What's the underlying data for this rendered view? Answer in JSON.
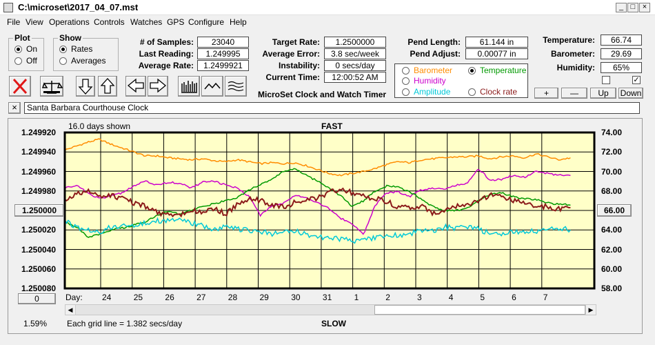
{
  "window": {
    "title": "C:\\microset\\2017_04_07.mst",
    "min_glyph": "_",
    "max_glyph": "□",
    "close_glyph": "×"
  },
  "menu": [
    "File",
    "View",
    "Operations",
    "Controls",
    "Watches",
    "GPS",
    "Configure",
    "Help"
  ],
  "plot_group": {
    "title": "Plot",
    "options": [
      "On",
      "Off"
    ],
    "selected": 0
  },
  "show_group": {
    "title": "Show",
    "options": [
      "Rates",
      "Averages"
    ],
    "selected": 0
  },
  "stats_left": [
    {
      "label": "# of Samples:",
      "value": "23040"
    },
    {
      "label": "Last Reading:",
      "value": "1.249995"
    },
    {
      "label": "Average Rate:",
      "value": "1.2499921"
    }
  ],
  "stats_mid": [
    {
      "label": "Target Rate:",
      "value": "1.2500000"
    },
    {
      "label": "Average Error:",
      "value": "3.8 sec/week"
    },
    {
      "label": "Instability:",
      "value": "0 secs/day"
    },
    {
      "label": "Current Time:",
      "value": "12:00:52 AM"
    }
  ],
  "stats_pend": [
    {
      "label": "Pend Length:",
      "value": "61.144 in"
    },
    {
      "label": "Pend Adjust:",
      "value": "0.00077 in"
    }
  ],
  "stats_env": [
    {
      "label": "Temperature:",
      "value": "66.74"
    },
    {
      "label": "Barometer:",
      "value": "29.69"
    },
    {
      "label": "Humidity:",
      "value": "65%"
    }
  ],
  "app_caption": "MicroSet Clock and Watch Timer",
  "sensor_options": [
    {
      "label": "Barometer",
      "color": "#ff8c00",
      "selected": false
    },
    {
      "label": "Temperature",
      "color": "#009900",
      "selected": true
    },
    {
      "label": "Humidity",
      "color": "#cc00cc",
      "selected": false
    },
    {
      "label": "Clock rate",
      "color": "#8b1a1a",
      "selected": false
    },
    {
      "label": "Amplitude",
      "color": "#00c8d8",
      "selected": false
    }
  ],
  "adjust_buttons": [
    "+",
    "—",
    "Up",
    "Down"
  ],
  "checkboxes": [
    {
      "checked": false
    },
    {
      "checked": true,
      "glyph": "✓"
    }
  ],
  "clock_name": {
    "close_glyph": "×",
    "value": "Santa Barbara Courthouse Clock"
  },
  "chart": {
    "days_shown": "16.0 days shown",
    "top_label": "FAST",
    "bottom_label": "SLOW",
    "grid_note": "Each grid line = 1.382 secs/day",
    "left_button": "1.250000",
    "right_button": "66.00",
    "bottom_left_button": "0",
    "percent": "1.59%",
    "day_prefix": "Day:"
  },
  "chart_data": {
    "type": "line",
    "y_left_ticks": [
      "1.249920",
      "1.249940",
      "1.249960",
      "1.249980",
      "1.250000",
      "1.250020",
      "1.250040",
      "1.250060",
      "1.250080"
    ],
    "y_right_ticks": [
      "74.00",
      "72.00",
      "70.00",
      "68.00",
      "66.00",
      "64.00",
      "62.00",
      "60.00",
      "58.00"
    ],
    "x_ticks": [
      "24",
      "25",
      "26",
      "27",
      "28",
      "29",
      "30",
      "31",
      "1",
      "2",
      "3",
      "4",
      "5",
      "6",
      "7"
    ],
    "ylim_right": [
      58,
      74
    ],
    "series": [
      {
        "color": "#ff8c00",
        "values": [
          72.2,
          72.6,
          73.0,
          73.3,
          72.8,
          72.4,
          72.0,
          71.6,
          71.6,
          71.4,
          71.3,
          71.2,
          71.3,
          71.1,
          71.0,
          71.2,
          71.0,
          70.8,
          70.9,
          70.8,
          70.9,
          70.6,
          70.2,
          69.8,
          69.6,
          69.8,
          70.0,
          70.3,
          70.7,
          71.0,
          70.9,
          71.2,
          71.3,
          71.4,
          71.5,
          71.5,
          71.6,
          71.3,
          71.5,
          71.6,
          71.4,
          71.8,
          71.5,
          71.2,
          71.4
        ]
      },
      {
        "color": "#cc00cc",
        "values": [
          68.3,
          68.6,
          67.8,
          67.2,
          67.5,
          67.8,
          68.5,
          69.0,
          68.6,
          68.9,
          68.8,
          68.3,
          68.9,
          69.0,
          68.6,
          68.3,
          67.5,
          65.5,
          66.5,
          66.7,
          67.6,
          67.3,
          66.8,
          66.2,
          65.2,
          64.6,
          63.6,
          66.5,
          67.8,
          67.9,
          67.4,
          68.1,
          68.3,
          68.2,
          68.6,
          68.8,
          70.3,
          69.1,
          69.2,
          69.6,
          69.4,
          70.0,
          69.8,
          69.6,
          69.6
        ]
      },
      {
        "color": "#009900",
        "values": [
          64.8,
          64.3,
          63.3,
          63.5,
          64.0,
          64.2,
          64.5,
          64.8,
          65.5,
          65.9,
          65.6,
          66.0,
          66.4,
          66.7,
          67.0,
          67.3,
          68.1,
          68.6,
          69.2,
          70.0,
          70.3,
          69.6,
          69.0,
          68.3,
          67.5,
          66.4,
          67.0,
          68.0,
          68.5,
          68.4,
          67.9,
          67.2,
          66.4,
          66.0,
          66.0,
          66.2,
          67.0,
          67.6,
          67.8,
          67.4,
          67.2,
          67.1,
          66.8,
          66.6,
          66.6
        ]
      },
      {
        "color": "#8b1a1a",
        "values": [
          67.0,
          67.8,
          68.0,
          67.3,
          67.6,
          67.2,
          66.8,
          66.4,
          65.8,
          65.6,
          65.6,
          66.0,
          65.8,
          66.2,
          65.6,
          66.6,
          67.2,
          67.0,
          66.6,
          66.4,
          66.8,
          67.1,
          67.3,
          67.9,
          68.2,
          67.8,
          67.5,
          67.2,
          66.9,
          66.4,
          66.2,
          66.4,
          65.8,
          65.9,
          66.4,
          66.6,
          66.9,
          67.6,
          67.4,
          67.0,
          66.8,
          66.4,
          66.4,
          66.1,
          66.5
        ]
      },
      {
        "color": "#00c8d8",
        "values": [
          64.9,
          64.3,
          64.1,
          63.8,
          64.3,
          64.4,
          64.5,
          64.8,
          64.9,
          65.0,
          65.1,
          64.7,
          64.4,
          64.0,
          64.3,
          64.1,
          64.0,
          63.9,
          63.6,
          63.8,
          63.9,
          63.5,
          63.4,
          63.1,
          63.1,
          62.9,
          63.0,
          63.2,
          63.3,
          63.5,
          63.6,
          64.0,
          63.9,
          64.3,
          64.2,
          64.4,
          64.1,
          63.6,
          63.5,
          63.8,
          63.7,
          63.9,
          64.0,
          64.2,
          64.0
        ]
      }
    ]
  }
}
